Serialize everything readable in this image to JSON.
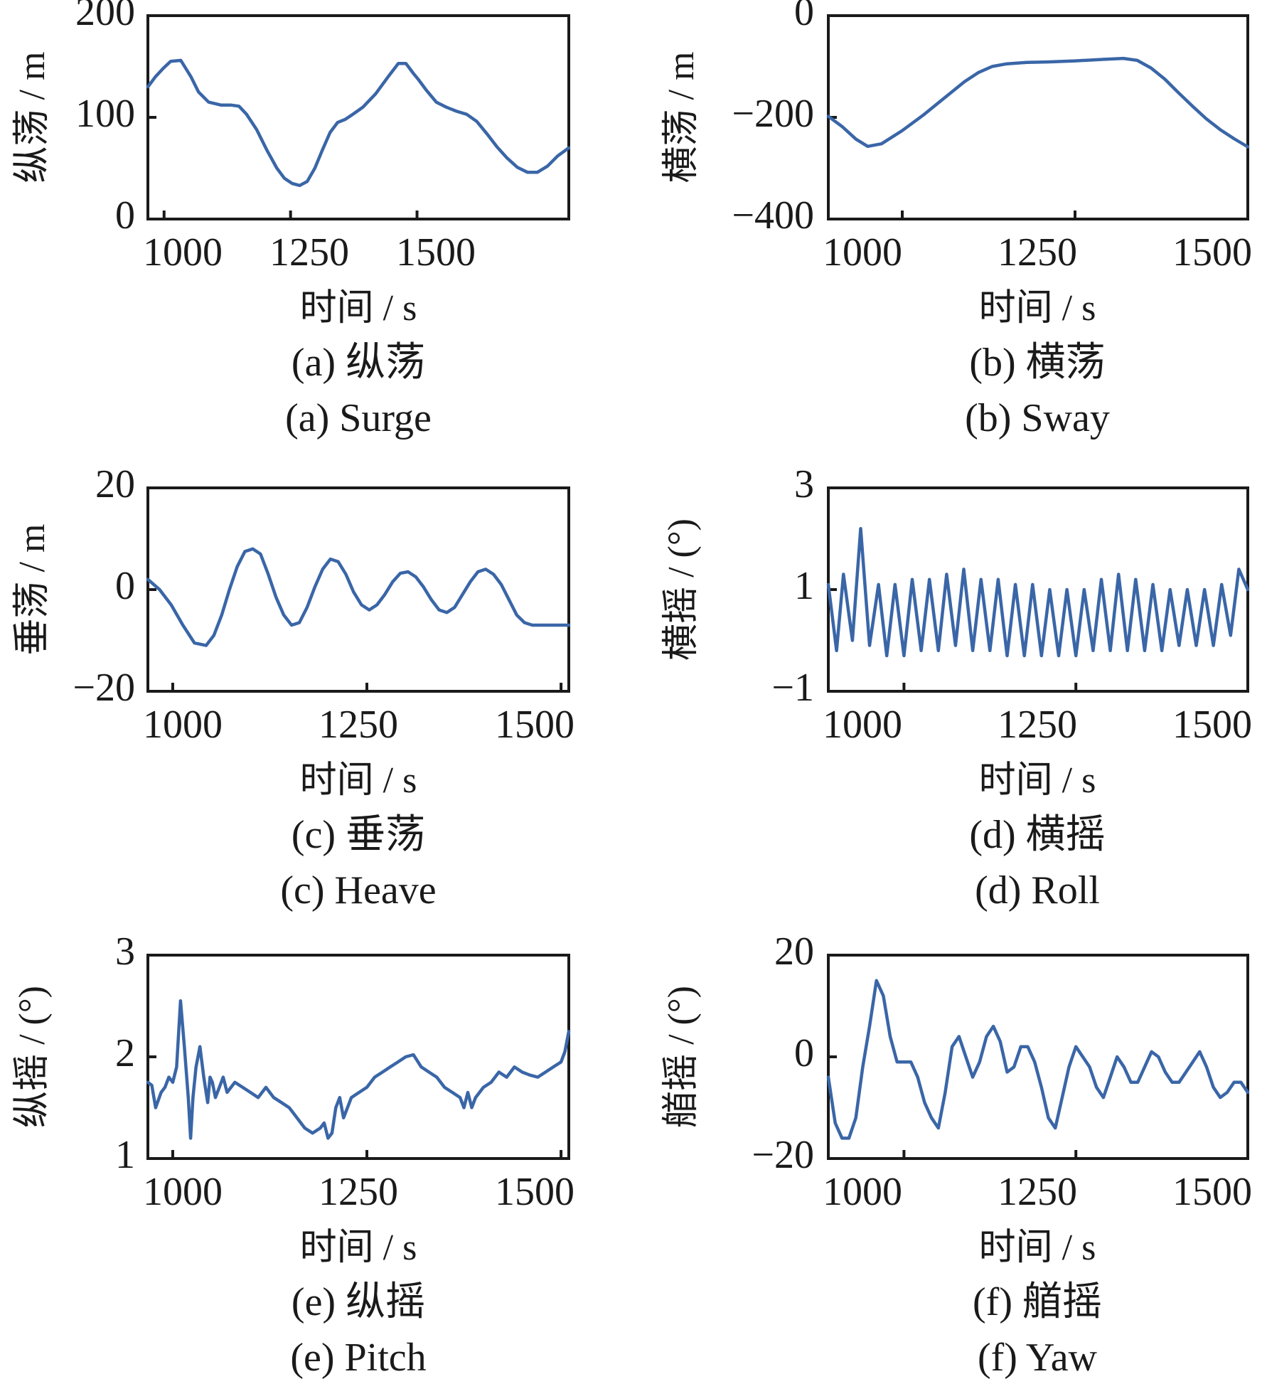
{
  "chart_data": [
    {
      "type": "line",
      "xlabel": "时间 / s",
      "ylabel": "纵荡 / m",
      "caption_cn": "(a) 纵荡",
      "caption_en": "(a) Surge",
      "xlim": [
        968,
        1800
      ],
      "ylim": [
        0,
        200
      ],
      "xticks": [
        1000,
        1250,
        1500
      ],
      "yticks": [
        0,
        100,
        200
      ],
      "color": "#3a66a7",
      "x": [
        968,
        983,
        998,
        1013,
        1033,
        1053,
        1068,
        1088,
        1113,
        1133,
        1148,
        1163,
        1183,
        1203,
        1223,
        1238,
        1253,
        1268,
        1283,
        1298,
        1313,
        1328,
        1343,
        1358,
        1373,
        1393,
        1418,
        1443,
        1463,
        1478,
        1493,
        1503,
        1518,
        1538,
        1558,
        1578,
        1598,
        1618,
        1638,
        1658,
        1678,
        1698,
        1718,
        1738,
        1758,
        1778,
        1800
      ],
      "y": [
        130,
        140,
        148,
        155,
        156,
        140,
        125,
        115,
        112,
        112,
        111,
        103,
        88,
        68,
        50,
        40,
        35,
        33,
        37,
        50,
        68,
        85,
        95,
        98,
        103,
        110,
        123,
        140,
        153,
        153,
        143,
        137,
        127,
        115,
        110,
        106,
        103,
        96,
        84,
        71,
        60,
        51,
        46,
        46,
        52,
        62,
        70
      ]
    },
    {
      "type": "line",
      "xlabel": "时间 / s",
      "ylabel": "横荡 / m",
      "caption_cn": "(b) 横荡",
      "caption_en": "(b) Sway",
      "xlim": [
        893,
        1500
      ],
      "ylim": [
        -400,
        0
      ],
      "xticks": [
        1000,
        1250,
        1500
      ],
      "yticks": [
        -400,
        -200,
        0
      ],
      "color": "#3a66a7",
      "x": [
        893,
        913,
        933,
        950,
        970,
        1000,
        1030,
        1060,
        1090,
        1110,
        1130,
        1150,
        1180,
        1210,
        1250,
        1290,
        1320,
        1340,
        1360,
        1380,
        1400,
        1420,
        1440,
        1460,
        1480,
        1500
      ],
      "y": [
        -198,
        -218,
        -243,
        -257,
        -252,
        -226,
        -196,
        -163,
        -130,
        -112,
        -100,
        -95,
        -92,
        -91,
        -89,
        -86,
        -84,
        -88,
        -103,
        -125,
        -152,
        -178,
        -203,
        -224,
        -242,
        -258
      ]
    },
    {
      "type": "line",
      "xlabel": "时间 / s",
      "ylabel": "垂荡 / m",
      "caption_cn": "(c) 垂荡",
      "caption_en": "(c) Heave",
      "xlim": [
        968,
        1510
      ],
      "ylim": [
        -20,
        20
      ],
      "xticks": [
        1000,
        1250,
        1500
      ],
      "yticks": [
        -20,
        0,
        20
      ],
      "color": "#3a66a7",
      "x": [
        968,
        983,
        998,
        1013,
        1028,
        1043,
        1053,
        1063,
        1073,
        1083,
        1093,
        1103,
        1113,
        1123,
        1133,
        1143,
        1153,
        1163,
        1173,
        1183,
        1193,
        1203,
        1213,
        1223,
        1233,
        1243,
        1253,
        1263,
        1273,
        1283,
        1293,
        1303,
        1313,
        1323,
        1333,
        1343,
        1353,
        1363,
        1373,
        1383,
        1393,
        1403,
        1413,
        1423,
        1433,
        1443,
        1453,
        1463,
        1473,
        1483,
        1493,
        1503,
        1510
      ],
      "y": [
        2,
        0,
        -3,
        -7,
        -10.5,
        -11,
        -9,
        -5,
        0,
        4.5,
        7.5,
        8,
        7,
        3,
        -1.5,
        -5,
        -7,
        -6.5,
        -3.5,
        0.5,
        4,
        6,
        5.5,
        3,
        -0.5,
        -3,
        -4,
        -3,
        -1,
        1.5,
        3.2,
        3.5,
        2.5,
        0.5,
        -2,
        -4,
        -4.5,
        -3.5,
        -1,
        1.5,
        3.5,
        4,
        3,
        1,
        -2,
        -5,
        -6.5,
        -7,
        -7,
        -7,
        -7,
        -7,
        -7
      ]
    },
    {
      "type": "line",
      "xlabel": "时间 / s",
      "ylabel": "横摇 / (°)",
      "caption_cn": "(d) 横摇",
      "caption_en": "(d) Roll",
      "xlim": [
        890,
        1500
      ],
      "ylim": [
        -1,
        3
      ],
      "xticks": [
        1000,
        1250,
        1500
      ],
      "yticks": [
        -1,
        1,
        3
      ],
      "color": "#3a66a7",
      "x": [
        890,
        902,
        912,
        925,
        937,
        950,
        963,
        975,
        987,
        1000,
        1012,
        1025,
        1037,
        1050,
        1062,
        1075,
        1087,
        1100,
        1112,
        1125,
        1137,
        1150,
        1162,
        1175,
        1187,
        1200,
        1212,
        1225,
        1237,
        1250,
        1262,
        1275,
        1287,
        1300,
        1312,
        1325,
        1337,
        1350,
        1362,
        1375,
        1387,
        1400,
        1412,
        1425,
        1437,
        1450,
        1462,
        1475,
        1487,
        1500
      ],
      "y": [
        1.1,
        -0.2,
        1.3,
        0,
        2.2,
        -0.1,
        1.1,
        -0.3,
        1.1,
        -0.3,
        1.2,
        -0.2,
        1.2,
        -0.2,
        1.3,
        -0.1,
        1.4,
        -0.2,
        1.2,
        -0.2,
        1.2,
        -0.3,
        1.1,
        -0.3,
        1.1,
        -0.3,
        1.0,
        -0.3,
        1.0,
        -0.3,
        1.0,
        -0.2,
        1.2,
        -0.2,
        1.3,
        -0.2,
        1.2,
        -0.2,
        1.1,
        -0.2,
        1.0,
        -0.1,
        1.0,
        -0.1,
        1.0,
        -0.1,
        1.1,
        0.1,
        1.4,
        1.0
      ]
    },
    {
      "type": "line",
      "xlabel": "时间 / s",
      "ylabel": "纵摇 / (°)",
      "caption_cn": "(e) 纵摇",
      "caption_en": "(e) Pitch",
      "xlim": [
        968,
        1510
      ],
      "ylim": [
        1,
        3
      ],
      "xticks": [
        1000,
        1250,
        1500
      ],
      "yticks": [
        1,
        2,
        3
      ],
      "color": "#3a66a7",
      "x": [
        968,
        973,
        978,
        985,
        990,
        995,
        1000,
        1005,
        1010,
        1015,
        1020,
        1023,
        1026,
        1030,
        1035,
        1040,
        1045,
        1048,
        1051,
        1055,
        1060,
        1065,
        1070,
        1075,
        1080,
        1090,
        1100,
        1110,
        1120,
        1130,
        1140,
        1150,
        1160,
        1170,
        1180,
        1190,
        1195,
        1200,
        1205,
        1210,
        1215,
        1220,
        1225,
        1230,
        1240,
        1250,
        1260,
        1270,
        1280,
        1290,
        1300,
        1310,
        1320,
        1330,
        1340,
        1350,
        1360,
        1370,
        1375,
        1380,
        1385,
        1390,
        1400,
        1410,
        1420,
        1430,
        1440,
        1450,
        1460,
        1470,
        1480,
        1490,
        1500,
        1505,
        1510
      ],
      "y": [
        1.75,
        1.72,
        1.5,
        1.65,
        1.7,
        1.8,
        1.75,
        1.9,
        2.55,
        2.1,
        1.6,
        1.2,
        1.6,
        1.9,
        2.1,
        1.8,
        1.55,
        1.8,
        1.75,
        1.6,
        1.7,
        1.8,
        1.65,
        1.7,
        1.75,
        1.7,
        1.65,
        1.6,
        1.7,
        1.6,
        1.55,
        1.5,
        1.4,
        1.3,
        1.25,
        1.3,
        1.35,
        1.2,
        1.25,
        1.5,
        1.6,
        1.4,
        1.5,
        1.6,
        1.65,
        1.7,
        1.8,
        1.85,
        1.9,
        1.95,
        2.0,
        2.02,
        1.9,
        1.85,
        1.8,
        1.7,
        1.65,
        1.6,
        1.5,
        1.65,
        1.5,
        1.6,
        1.7,
        1.75,
        1.85,
        1.8,
        1.9,
        1.85,
        1.82,
        1.8,
        1.85,
        1.9,
        1.95,
        2.05,
        2.25
      ]
    },
    {
      "type": "line",
      "xlabel": "时间 / s",
      "ylabel": "艏摇 / (°)",
      "caption_cn": "(f) 艏摇",
      "caption_en": "(f) Yaw",
      "xlim": [
        890,
        1500
      ],
      "ylim": [
        -20,
        20
      ],
      "xticks": [
        1000,
        1250,
        1500
      ],
      "yticks": [
        -20,
        0,
        20
      ],
      "color": "#3a66a7",
      "x": [
        890,
        900,
        910,
        920,
        930,
        940,
        950,
        960,
        970,
        980,
        990,
        1000,
        1010,
        1020,
        1030,
        1040,
        1050,
        1060,
        1070,
        1080,
        1090,
        1100,
        1110,
        1120,
        1130,
        1140,
        1150,
        1160,
        1170,
        1180,
        1190,
        1200,
        1210,
        1220,
        1230,
        1240,
        1250,
        1260,
        1270,
        1280,
        1290,
        1300,
        1310,
        1320,
        1330,
        1340,
        1350,
        1360,
        1370,
        1380,
        1390,
        1400,
        1410,
        1420,
        1430,
        1440,
        1450,
        1460,
        1470,
        1480,
        1490,
        1500
      ],
      "y": [
        -4,
        -13,
        -16,
        -16,
        -12,
        -2,
        6,
        15,
        12,
        4,
        -1,
        -1,
        -1,
        -4,
        -9,
        -12,
        -14,
        -7,
        2,
        4,
        0,
        -4,
        -1,
        4,
        6,
        3,
        -3,
        -2,
        2,
        2,
        -1,
        -6,
        -12,
        -14,
        -8,
        -2,
        2,
        0,
        -2,
        -6,
        -8,
        -4,
        0,
        -2,
        -5,
        -5,
        -2,
        1,
        0,
        -3,
        -5,
        -5,
        -3,
        -1,
        1,
        -2,
        -6,
        -8,
        -7,
        -5,
        -5,
        -7
      ]
    }
  ]
}
